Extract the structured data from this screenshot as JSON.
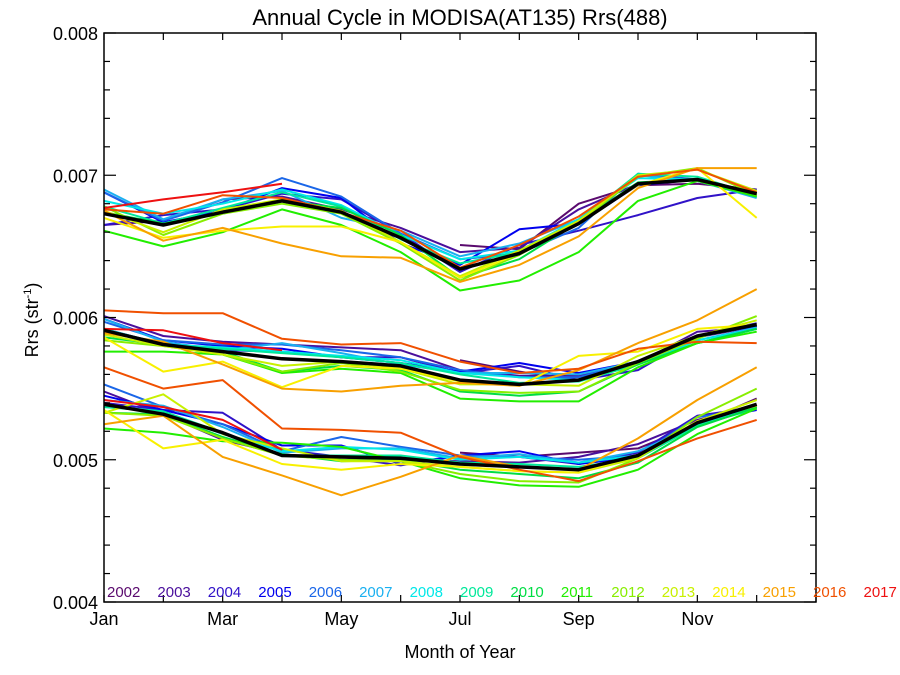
{
  "chart_data": {
    "type": "line",
    "title": "Annual Cycle in MODISA(AT135) Rrs(488)",
    "xlabel": "Month of Year",
    "ylabel_main": "Rrs (str",
    "ylabel_sup": "-1",
    "ylabel_close": ")",
    "x_tick_labels": [
      {
        "month": 1,
        "label": "Jan"
      },
      {
        "month": 3,
        "label": "Mar"
      },
      {
        "month": 5,
        "label": "May"
      },
      {
        "month": 7,
        "label": "Jul"
      },
      {
        "month": 9,
        "label": "Sep"
      },
      {
        "month": 11,
        "label": "Nov"
      }
    ],
    "y_tick_labels": [
      "0.004",
      "0.005",
      "0.006",
      "0.007",
      "0.008"
    ],
    "y_ticks": [
      0.004,
      0.005,
      0.006,
      0.007,
      0.008
    ],
    "xlim": [
      1,
      13
    ],
    "ylim": [
      0.004,
      0.008
    ],
    "legend_placement": "bottom, inside plot",
    "mean_color": "#000000",
    "months": [
      1,
      2,
      3,
      4,
      5,
      6,
      7,
      8,
      9,
      10,
      11,
      12
    ],
    "series": [
      {
        "name": "2002",
        "color": "#5a0a6e",
        "upper": [
          null,
          null,
          null,
          null,
          null,
          null,
          0.00651,
          0.00648,
          0.0068,
          0.00693,
          0.00694,
          0.0069
        ],
        "middle": [
          null,
          null,
          null,
          null,
          null,
          null,
          0.0057,
          0.00562,
          0.00556,
          0.00567,
          0.00586,
          0.00594
        ],
        "lower": [
          null,
          null,
          null,
          null,
          null,
          null,
          0.00505,
          0.00502,
          0.00505,
          0.00508,
          0.00525,
          0.00543
        ]
      },
      {
        "name": "2003",
        "color": "#4a0f9c",
        "upper": [
          0.00665,
          0.00668,
          0.00683,
          0.00685,
          0.00676,
          0.00663,
          0.00646,
          0.00649,
          0.00676,
          0.00694,
          0.00697,
          0.00687
        ],
        "middle": [
          0.00601,
          0.00587,
          0.00583,
          0.00581,
          0.00579,
          0.00577,
          0.00563,
          0.00559,
          0.00559,
          0.00568,
          0.0059,
          0.00593
        ],
        "lower": [
          0.00548,
          0.00532,
          0.00514,
          0.00504,
          0.005,
          0.005,
          0.00499,
          0.00498,
          0.00502,
          0.00511,
          0.00528,
          0.00537
        ]
      },
      {
        "name": "2004",
        "color": "#3012c8",
        "upper": [
          0.00665,
          0.00672,
          0.00676,
          0.00687,
          0.00683,
          0.00659,
          0.00632,
          0.00651,
          0.00661,
          0.00672,
          0.00684,
          0.0069
        ],
        "middle": [
          0.00592,
          0.00581,
          0.00577,
          0.00576,
          0.00572,
          0.00572,
          0.00561,
          0.00566,
          0.00556,
          0.00563,
          0.00587,
          0.00596
        ],
        "lower": [
          0.0054,
          0.00535,
          0.00533,
          0.00507,
          0.00502,
          0.00496,
          0.00503,
          0.00502,
          0.00497,
          0.00505,
          0.00531,
          0.00537
        ]
      },
      {
        "name": "2005",
        "color": "#0000ee",
        "upper": [
          0.00688,
          0.00667,
          0.00675,
          0.00691,
          0.00684,
          0.00652,
          0.00637,
          0.00662,
          0.00666,
          0.00693,
          0.00697,
          0.00685
        ],
        "middle": [
          0.00599,
          0.00584,
          0.0058,
          0.00578,
          0.00572,
          0.00568,
          0.00562,
          0.00568,
          0.00561,
          0.00569,
          0.00587,
          0.00594
        ],
        "lower": [
          0.00545,
          0.00535,
          0.00525,
          0.0051,
          0.0051,
          0.00497,
          0.00503,
          0.00506,
          0.00497,
          0.00502,
          0.00527,
          0.00535
        ]
      },
      {
        "name": "2006",
        "color": "#1a66e8",
        "upper": [
          0.00688,
          0.00668,
          0.00681,
          0.00698,
          0.00685,
          0.00659,
          0.00641,
          0.00645,
          0.00663,
          0.00701,
          0.00697,
          0.00686
        ],
        "middle": [
          0.00597,
          0.00584,
          0.00581,
          0.00581,
          0.00577,
          0.00572,
          0.00563,
          0.00558,
          0.00558,
          0.00569,
          0.00586,
          0.00595
        ],
        "lower": [
          0.00553,
          0.00537,
          0.00525,
          0.00506,
          0.00516,
          0.00509,
          0.00503,
          0.00502,
          0.005,
          0.00503,
          0.0053,
          0.00536
        ]
      },
      {
        "name": "2007",
        "color": "#1ab0f0",
        "upper": [
          0.0069,
          0.00669,
          0.00683,
          0.00689,
          0.0067,
          0.00661,
          0.00643,
          0.00652,
          0.00669,
          0.007,
          0.00696,
          0.00684
        ],
        "middle": [
          0.00599,
          0.00583,
          0.00577,
          0.00582,
          0.00575,
          0.00567,
          0.00561,
          0.00561,
          0.0056,
          0.00569,
          0.00584,
          0.00593
        ],
        "lower": [
          0.00542,
          0.00538,
          0.00523,
          0.00505,
          0.00508,
          0.00508,
          0.00501,
          0.00504,
          0.00498,
          0.00506,
          0.00524,
          0.00537
        ]
      },
      {
        "name": "2008",
        "color": "#00e8e8",
        "upper": [
          0.00682,
          0.00673,
          0.0068,
          0.0069,
          0.00679,
          0.00658,
          0.00641,
          0.00647,
          0.00669,
          0.00698,
          0.00697,
          0.00685
        ],
        "middle": [
          0.00592,
          0.00581,
          0.00579,
          0.00576,
          0.00573,
          0.0057,
          0.00561,
          0.00558,
          0.00556,
          0.00567,
          0.00584,
          0.00592
        ],
        "lower": [
          0.00538,
          0.00534,
          0.00518,
          0.00506,
          0.00509,
          0.00507,
          0.005,
          0.00502,
          0.00498,
          0.00503,
          0.00525,
          0.00538
        ]
      },
      {
        "name": "2009",
        "color": "#00e89a",
        "upper": [
          0.00678,
          0.00666,
          0.00677,
          0.00688,
          0.00678,
          0.00655,
          0.00638,
          0.00646,
          0.00668,
          0.00701,
          0.00699,
          0.00686
        ],
        "middle": [
          0.00591,
          0.00581,
          0.00578,
          0.00575,
          0.00572,
          0.00568,
          0.0056,
          0.00554,
          0.00555,
          0.00567,
          0.00582,
          0.00592
        ],
        "lower": [
          0.00537,
          0.00534,
          0.00519,
          0.00503,
          0.00503,
          0.00503,
          0.00498,
          0.00497,
          0.00495,
          0.00501,
          0.00524,
          0.00536
        ]
      },
      {
        "name": "2010",
        "color": "#00dd44",
        "upper": [
          0.00674,
          0.00666,
          0.00673,
          0.00682,
          0.00677,
          0.00658,
          0.00628,
          0.00641,
          0.00667,
          0.00695,
          0.00697,
          0.00686
        ],
        "middle": [
          0.00586,
          0.00581,
          0.00576,
          0.00562,
          0.00566,
          0.00563,
          0.00548,
          0.00545,
          0.00548,
          0.00567,
          0.00582,
          0.00592
        ],
        "lower": [
          0.00533,
          0.00532,
          0.00516,
          0.00504,
          0.00499,
          0.005,
          0.00493,
          0.0049,
          0.00487,
          0.00498,
          0.00523,
          0.00537
        ]
      },
      {
        "name": "2011",
        "color": "#22ee00",
        "upper": [
          0.00661,
          0.0065,
          0.0066,
          0.00676,
          0.00665,
          0.00646,
          0.00619,
          0.00626,
          0.00646,
          0.00682,
          0.00696,
          0.00685
        ],
        "middle": [
          0.00576,
          0.00576,
          0.00574,
          0.00561,
          0.00564,
          0.00561,
          0.00543,
          0.00541,
          0.00541,
          0.00565,
          0.00582,
          0.0059
        ],
        "lower": [
          0.00522,
          0.00519,
          0.00513,
          0.00512,
          0.00509,
          0.00499,
          0.00487,
          0.00482,
          0.00481,
          0.00493,
          0.00518,
          0.00536
        ]
      },
      {
        "name": "2012",
        "color": "#88ee00",
        "upper": [
          0.00678,
          0.00658,
          0.00673,
          0.0068,
          0.00673,
          0.00652,
          0.00626,
          0.00644,
          0.00667,
          0.00699,
          0.00705,
          0.00686
        ],
        "middle": [
          0.00584,
          0.0058,
          0.00574,
          0.00562,
          0.00568,
          0.00562,
          0.00549,
          0.00547,
          0.00548,
          0.00568,
          0.00585,
          0.00601
        ],
        "lower": [
          0.00533,
          0.00531,
          0.00515,
          0.00503,
          0.005,
          0.00499,
          0.0049,
          0.00485,
          0.00484,
          0.00501,
          0.0053,
          0.0055
        ]
      },
      {
        "name": "2013",
        "color": "#c8f000",
        "upper": [
          0.00675,
          0.0066,
          0.00676,
          0.00683,
          0.00675,
          0.00653,
          0.00629,
          0.00647,
          0.00668,
          0.007,
          0.00704,
          0.00689
        ],
        "middle": [
          0.00588,
          0.0058,
          0.00574,
          0.00566,
          0.00569,
          0.00564,
          0.00553,
          0.00553,
          0.00552,
          0.00573,
          0.00587,
          0.00598
        ],
        "lower": [
          0.00533,
          0.00546,
          0.00518,
          0.00508,
          0.00499,
          0.00499,
          0.00495,
          0.00492,
          0.00491,
          0.00501,
          0.00527,
          0.00542
        ]
      },
      {
        "name": "2014",
        "color": "#f8f000",
        "upper": [
          0.0067,
          0.00656,
          0.00661,
          0.00664,
          0.00664,
          0.00653,
          0.00628,
          0.00645,
          0.00667,
          0.00693,
          0.00705,
          0.0067
        ],
        "middle": [
          0.00586,
          0.00562,
          0.00569,
          0.00551,
          0.00566,
          0.00564,
          0.00555,
          0.00552,
          0.00573,
          0.00576,
          0.00592,
          0.00595
        ],
        "lower": [
          0.00535,
          0.00508,
          0.00514,
          0.00497,
          0.00493,
          0.00497,
          0.00495,
          0.00492,
          0.00491,
          0.00503,
          0.00527,
          0.00538
        ]
      },
      {
        "name": "2015",
        "color": "#f8a000",
        "upper": [
          0.00675,
          0.00654,
          0.00663,
          0.00652,
          0.00643,
          0.00642,
          0.00625,
          0.00637,
          0.00657,
          0.00691,
          0.00705,
          0.00705
        ],
        "middle": [
          0.00589,
          0.00583,
          0.00567,
          0.0055,
          0.00548,
          0.00552,
          0.00554,
          0.00552,
          0.00563,
          0.00582,
          0.00598,
          0.0062
        ],
        "lower": [
          0.00525,
          0.00531,
          0.00502,
          0.00489,
          0.00475,
          0.00488,
          0.00503,
          0.00495,
          0.00493,
          0.00515,
          0.00542,
          0.00565
        ]
      },
      {
        "name": "2016",
        "color": "#f05000",
        "upper": [
          0.00676,
          0.00673,
          0.00686,
          0.00684,
          0.00674,
          0.00661,
          0.00635,
          0.00651,
          0.00671,
          0.00699,
          0.00704,
          0.00688
        ],
        "middle": [
          0.00605,
          0.00603,
          0.00603,
          0.00585,
          0.00581,
          0.00582,
          0.00569,
          0.00561,
          0.00564,
          0.00578,
          0.00583,
          0.00582
        ],
        "lower": [
          0.00565,
          0.0055,
          0.00556,
          0.00522,
          0.00521,
          0.00519,
          0.00502,
          0.00493,
          0.00485,
          0.00499,
          0.00515,
          0.00528
        ]
      },
      {
        "name": "2017",
        "color": "#ee1111",
        "upper": [
          0.00677,
          0.00683,
          0.00688,
          0.00694,
          null,
          null,
          null,
          null,
          null,
          null,
          null,
          null
        ],
        "middle": [
          0.00592,
          0.00591,
          0.00582,
          0.00577,
          null,
          null,
          null,
          null,
          null,
          null,
          null,
          null
        ],
        "lower": [
          0.00542,
          0.00537,
          0.00528,
          0.00507,
          null,
          null,
          null,
          null,
          null,
          null,
          null,
          null
        ]
      }
    ],
    "mean": {
      "upper": [
        0.00673,
        0.00665,
        0.00674,
        0.00682,
        0.00674,
        0.00656,
        0.00634,
        0.00645,
        0.00666,
        0.00694,
        0.00697,
        0.00687
      ],
      "middle": [
        0.00591,
        0.00581,
        0.00576,
        0.00571,
        0.00569,
        0.00566,
        0.00556,
        0.00553,
        0.00556,
        0.00569,
        0.00587,
        0.00595
      ],
      "lower": [
        0.00539,
        0.00532,
        0.00519,
        0.00503,
        0.00502,
        0.00501,
        0.00497,
        0.00495,
        0.00493,
        0.00503,
        0.00526,
        0.00539
      ]
    }
  }
}
